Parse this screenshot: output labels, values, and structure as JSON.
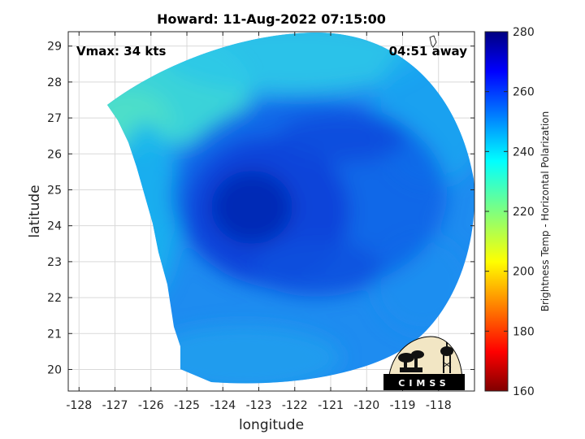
{
  "chart_data": {
    "type": "heatmap",
    "title": "Howard: 11-Aug-2022 07:15:00",
    "xlabel": "longitude",
    "ylabel": "latitude",
    "xlim": [
      -128.3,
      -117.0
    ],
    "ylim": [
      19.4,
      29.4
    ],
    "xticks": [
      -128,
      -127,
      -126,
      -125,
      -124,
      -123,
      -122,
      -121,
      -120,
      -119,
      -118
    ],
    "yticks": [
      20,
      21,
      22,
      23,
      24,
      25,
      26,
      27,
      28,
      29
    ],
    "grid": true,
    "colorbar": {
      "label": "Brightness Temp - Horizontal Polarization",
      "range": [
        160,
        280
      ],
      "ticks": [
        160,
        180,
        200,
        220,
        240,
        260,
        280
      ],
      "colormap": "jet"
    },
    "storm_center": {
      "lon": -123.2,
      "lat": 24.6
    },
    "annotations": {
      "vmax": "Vmax: 34 kts",
      "time_offset": "04:51 away"
    }
  },
  "logo": {
    "text": "CIMSS"
  }
}
